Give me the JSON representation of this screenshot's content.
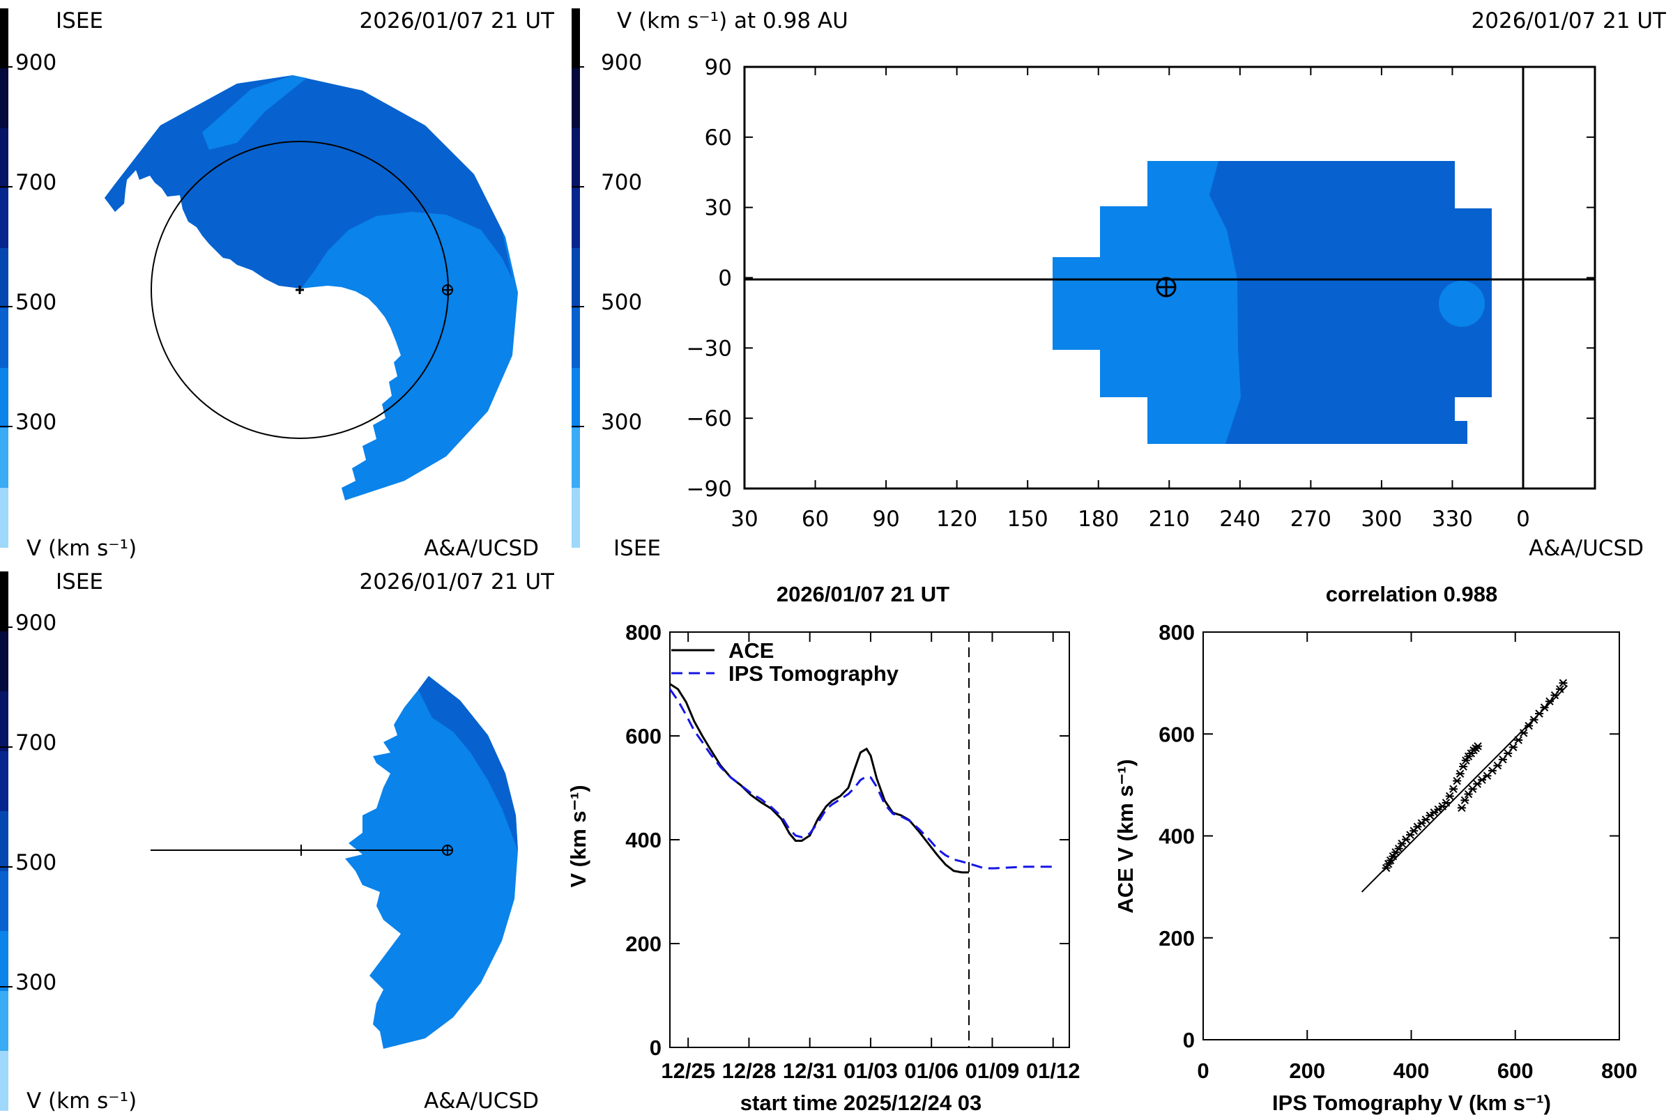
{
  "colors": {
    "scale": [
      "#9fd8fa",
      "#3aabf5",
      "#0a83ea",
      "#0762cf",
      "#0547b1",
      "#06268e",
      "#061566",
      "#050a3c",
      "#000000"
    ],
    "bg_medium": "#0a83ea",
    "bg_dark": "#0762cf",
    "ace_line": "#000000",
    "ips_line": "#1616e6"
  },
  "colorbar": {
    "ticks": [
      "900",
      "700",
      "500",
      "300"
    ],
    "units": "V (km s⁻¹)"
  },
  "panel_top_left": {
    "institution": "ISEE",
    "timestamp": "2026/01/07 21 UT",
    "units": "V (km s⁻¹)",
    "credit": "A&A/UCSD"
  },
  "panel_bottom_left": {
    "institution": "ISEE",
    "timestamp": "2026/01/07 21 UT",
    "units": "V (km s⁻¹)",
    "credit": "A&A/UCSD"
  },
  "panel_top_right": {
    "title": "V (km s⁻¹) at 0.98 AU",
    "timestamp": "2026/01/07 21 UT",
    "institution": "ISEE",
    "credit": "A&A/UCSD",
    "x_ticks": [
      "30",
      "60",
      "90",
      "120",
      "150",
      "180",
      "210",
      "240",
      "270",
      "300",
      "330",
      "0"
    ],
    "y_ticks": [
      "90",
      "60",
      "30",
      "0",
      "−30",
      "−60",
      "−90"
    ]
  },
  "earth_symbol": "⊕",
  "chart_data": [
    {
      "type": "line",
      "title": "2026/01/07 21 UT",
      "xlabel": "start time 2025/12/24 03",
      "ylabel": "V (km s⁻¹)",
      "x_tick_labels": [
        "12/25",
        "12/28",
        "12/31",
        "01/03",
        "01/06",
        "01/09",
        "01/12"
      ],
      "x_tick_days": [
        0.9,
        3.9,
        6.9,
        9.9,
        12.9,
        15.9,
        18.9
      ],
      "xlim": [
        0,
        19.7
      ],
      "ylim": [
        0,
        800
      ],
      "y_ticks": [
        0,
        200,
        400,
        600,
        800
      ],
      "now_marker_day": 14.75,
      "legend_position": "top-left",
      "series": [
        {
          "name": "ACE",
          "style": "solid",
          "x": [
            0,
            0.4,
            0.8,
            1.2,
            1.6,
            2.0,
            2.5,
            3.0,
            3.5,
            4.0,
            4.5,
            5.0,
            5.5,
            5.9,
            6.2,
            6.5,
            6.9,
            7.3,
            7.7,
            8.0,
            8.4,
            8.8,
            9.1,
            9.4,
            9.7,
            9.9,
            10.2,
            10.6,
            11.0,
            11.4,
            11.8,
            12.3,
            12.8,
            13.2,
            13.6,
            14.0,
            14.4,
            14.75
          ],
          "y": [
            700,
            690,
            665,
            628,
            600,
            574,
            543,
            520,
            505,
            486,
            472,
            460,
            440,
            412,
            398,
            398,
            408,
            440,
            464,
            475,
            484,
            500,
            535,
            568,
            575,
            562,
            518,
            475,
            452,
            447,
            438,
            415,
            390,
            370,
            352,
            340,
            337,
            337
          ]
        },
        {
          "name": "IPS Tomography",
          "style": "dashed",
          "x": [
            0,
            0.4,
            0.8,
            1.2,
            1.6,
            2.0,
            2.5,
            3.0,
            3.5,
            4.0,
            4.5,
            5.0,
            5.5,
            5.9,
            6.2,
            6.5,
            6.9,
            7.3,
            7.7,
            8.0,
            8.4,
            8.8,
            9.1,
            9.4,
            9.7,
            9.9,
            10.2,
            10.6,
            11.0,
            11.4,
            11.8,
            12.3,
            12.8,
            13.2,
            13.6,
            14.0,
            14.4,
            14.75,
            15.1,
            15.5,
            16.0,
            16.5,
            17.0,
            17.5,
            18.0,
            18.5,
            19.0
          ],
          "y": [
            690,
            668,
            640,
            610,
            588,
            565,
            540,
            520,
            505,
            490,
            478,
            463,
            445,
            420,
            408,
            405,
            412,
            433,
            458,
            468,
            478,
            488,
            500,
            515,
            522,
            520,
            502,
            468,
            450,
            445,
            437,
            420,
            400,
            382,
            370,
            362,
            358,
            354,
            350,
            345,
            345,
            346,
            347,
            348,
            348,
            348,
            348
          ]
        }
      ]
    },
    {
      "type": "scatter",
      "title": "correlation 0.988",
      "xlabel": "IPS Tomography V (km s⁻¹)",
      "ylabel": "ACE V (km s⁻¹)",
      "xlim": [
        0,
        800
      ],
      "ylim": [
        0,
        800
      ],
      "x_ticks": [
        0,
        200,
        400,
        600,
        800
      ],
      "y_ticks": [
        0,
        200,
        400,
        600,
        800
      ],
      "points_x": [
        352,
        356,
        360,
        365,
        370,
        376,
        382,
        390,
        398,
        405,
        412,
        420,
        428,
        436,
        444,
        452,
        460,
        467,
        474,
        481,
        488,
        494,
        500,
        505,
        510,
        515,
        520,
        524,
        528,
        497,
        503,
        510,
        518,
        527,
        536,
        546,
        556,
        566,
        576,
        586,
        596,
        606,
        616,
        626,
        636,
        646,
        656,
        666,
        676,
        686,
        692
      ],
      "points_y": [
        337,
        345,
        352,
        360,
        368,
        375,
        385,
        393,
        402,
        410,
        418,
        425,
        432,
        440,
        446,
        452,
        458,
        465,
        478,
        492,
        508,
        522,
        536,
        548,
        556,
        562,
        568,
        572,
        576,
        455,
        470,
        482,
        492,
        502,
        510,
        518,
        528,
        538,
        550,
        562,
        574,
        588,
        602,
        616,
        628,
        640,
        652,
        664,
        676,
        688,
        700
      ],
      "fit_line": {
        "x": [
          305,
          700
        ],
        "y": [
          290,
          695
        ]
      }
    }
  ]
}
